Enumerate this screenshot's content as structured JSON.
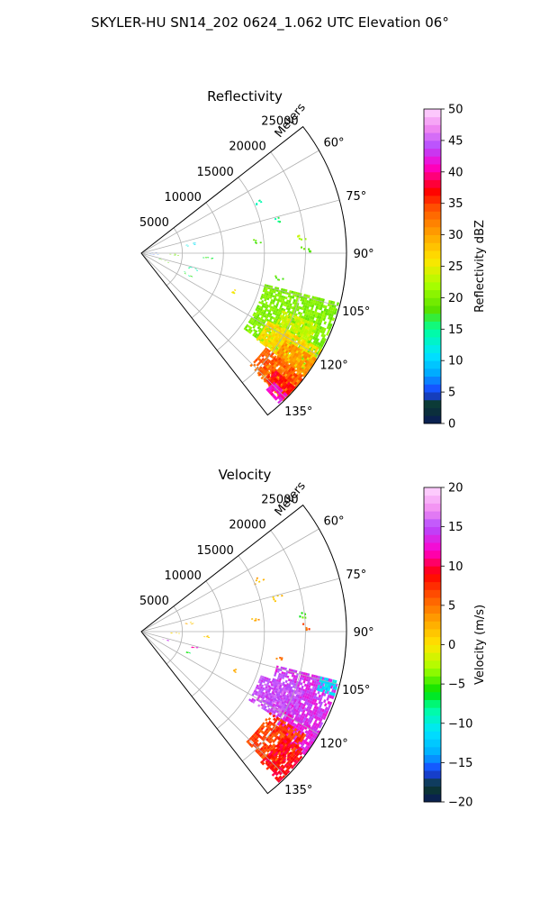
{
  "suptitle": "SKYLER-HU  SN14_202  0624_1.062 UTC Elevation 06°",
  "chart_data": [
    {
      "type": "heatmap",
      "projection": "polar-sector",
      "title": "Reflectivity",
      "radial_label": "Meters",
      "radial_ticks": [
        5000,
        10000,
        15000,
        20000,
        25000
      ],
      "radial_tick_labels": [
        "5000",
        "10000",
        "15000",
        "20000",
        "25000"
      ],
      "rlim": [
        0,
        25000
      ],
      "angle_range_deg": [
        52,
        142
      ],
      "angle_ticks": [
        60,
        75,
        90,
        105,
        120,
        135
      ],
      "angle_tick_labels": [
        "60°",
        "75°",
        "90°",
        "105°",
        "120°",
        "135°"
      ],
      "grid": true,
      "colorbar": {
        "label": "Reflectivity dBZ",
        "vmin": 0,
        "vmax": 50,
        "ticks": [
          0,
          5,
          10,
          15,
          20,
          25,
          30,
          35,
          40,
          45,
          50
        ],
        "tick_labels": [
          "0",
          "5",
          "10",
          "15",
          "20",
          "25",
          "30",
          "35",
          "40",
          "45",
          "50"
        ],
        "stops": [
          [
            0,
            "#0a1a5a"
          ],
          [
            3,
            "#0b3b2a"
          ],
          [
            5,
            "#1a3fff"
          ],
          [
            8,
            "#00aaff"
          ],
          [
            11,
            "#00e5ff"
          ],
          [
            15,
            "#00ff9a"
          ],
          [
            18,
            "#55e000"
          ],
          [
            22,
            "#a8ff00"
          ],
          [
            26,
            "#ffe600"
          ],
          [
            30,
            "#ffa500"
          ],
          [
            34,
            "#ff5a00"
          ],
          [
            37,
            "#ff0000"
          ],
          [
            41,
            "#ff00cc"
          ],
          [
            44,
            "#b44cff"
          ],
          [
            47,
            "#f088f0"
          ],
          [
            50,
            "#ffd8ff"
          ]
        ]
      },
      "echo_regions": [
        {
          "az": [
            104,
            126
          ],
          "r": [
            15500,
            24800
          ],
          "value": 20
        },
        {
          "az": [
            112,
            126
          ],
          "r": [
            18500,
            23000
          ],
          "value": 24
        },
        {
          "az": [
            118,
            127
          ],
          "r": [
            17500,
            24800
          ],
          "value": 27
        },
        {
          "az": [
            121,
            136
          ],
          "r": [
            20500,
            24800
          ],
          "value": 31
        },
        {
          "az": [
            127,
            136
          ],
          "r": [
            19000,
            24800
          ],
          "value": 34
        },
        {
          "az": [
            131,
            135
          ],
          "r": [
            21500,
            24800
          ],
          "value": 37
        },
        {
          "az": [
            134,
            137
          ],
          "r": [
            22500,
            24800
          ],
          "value": 41
        }
      ],
      "echo_clutter": [
        {
          "az": 84,
          "r": 14000,
          "value": 18
        },
        {
          "az": 76,
          "r": 17000,
          "value": 15
        },
        {
          "az": 66,
          "r": 15500,
          "value": 14
        },
        {
          "az": 88,
          "r": 20000,
          "value": 18
        },
        {
          "az": 100,
          "r": 17000,
          "value": 18
        },
        {
          "az": 94,
          "r": 8000,
          "value": 17
        },
        {
          "az": 106,
          "r": 6500,
          "value": 14
        },
        {
          "az": 114,
          "r": 6200,
          "value": 16
        },
        {
          "az": 92,
          "r": 4000,
          "value": 20
        },
        {
          "az": 95,
          "r": 1500,
          "value": 6
        },
        {
          "az": 88,
          "r": 1200,
          "value": 5
        },
        {
          "az": 80,
          "r": 6000,
          "value": 11
        },
        {
          "az": 108,
          "r": 2800,
          "value": 18
        },
        {
          "az": 112,
          "r": 12500,
          "value": 26
        },
        {
          "az": 84,
          "r": 19500,
          "value": 23
        }
      ]
    },
    {
      "type": "heatmap",
      "projection": "polar-sector",
      "title": "Velocity",
      "radial_label": "Meters",
      "radial_ticks": [
        5000,
        10000,
        15000,
        20000,
        25000
      ],
      "radial_tick_labels": [
        "5000",
        "10000",
        "15000",
        "20000",
        "25000"
      ],
      "rlim": [
        0,
        25000
      ],
      "angle_range_deg": [
        52,
        142
      ],
      "angle_ticks": [
        60,
        75,
        90,
        105,
        120,
        135
      ],
      "angle_tick_labels": [
        "60°",
        "75°",
        "90°",
        "105°",
        "120°",
        "135°"
      ],
      "grid": true,
      "colorbar": {
        "label": "Velocity (m/s)",
        "vmin": -20,
        "vmax": 20,
        "ticks": [
          -20,
          -15,
          -10,
          -5,
          0,
          5,
          10,
          15,
          20
        ],
        "tick_labels": [
          "−20",
          "−15",
          "−10",
          "−5",
          "0",
          "5",
          "10",
          "15",
          "20"
        ],
        "stops": [
          [
            -20,
            "#0a1a5a"
          ],
          [
            -18,
            "#0b3b2a"
          ],
          [
            -16,
            "#1a3fff"
          ],
          [
            -14,
            "#00aaff"
          ],
          [
            -11,
            "#00e5ff"
          ],
          [
            -8,
            "#00ff9a"
          ],
          [
            -6,
            "#00e000"
          ],
          [
            -3,
            "#a8ff00"
          ],
          [
            0,
            "#ffe600"
          ],
          [
            3,
            "#ffa500"
          ],
          [
            6,
            "#ff5a00"
          ],
          [
            9,
            "#ff0000"
          ],
          [
            12,
            "#ff00cc"
          ],
          [
            15,
            "#b44cff"
          ],
          [
            17,
            "#f088f0"
          ],
          [
            20,
            "#ffd8ff"
          ]
        ]
      },
      "echo_regions": [
        {
          "az": [
            104,
            120
          ],
          "r": [
            17000,
            24800
          ],
          "value": 14
        },
        {
          "az": [
            110,
            122
          ],
          "r": [
            15500,
            21000
          ],
          "value": 15
        },
        {
          "az": [
            119,
            128
          ],
          "r": [
            20000,
            24800
          ],
          "value": 13
        },
        {
          "az": [
            122,
            136
          ],
          "r": [
            18500,
            23500
          ],
          "value": 7
        },
        {
          "az": [
            126,
            137
          ],
          "r": [
            21500,
            24800
          ],
          "value": 9
        },
        {
          "az": [
            104,
            108
          ],
          "r": [
            22500,
            24800
          ],
          "value": -11
        }
      ],
      "echo_clutter": [
        {
          "az": 84,
          "r": 14000,
          "value": 3
        },
        {
          "az": 76,
          "r": 17000,
          "value": 2
        },
        {
          "az": 66,
          "r": 15500,
          "value": 2
        },
        {
          "az": 88,
          "r": 20000,
          "value": 6
        },
        {
          "az": 100,
          "r": 17000,
          "value": 5
        },
        {
          "az": 94,
          "r": 8000,
          "value": 1
        },
        {
          "az": 106,
          "r": 6500,
          "value": 12
        },
        {
          "az": 114,
          "r": 6200,
          "value": -6
        },
        {
          "az": 92,
          "r": 4000,
          "value": 0
        },
        {
          "az": 80,
          "r": 6000,
          "value": 2
        },
        {
          "az": 108,
          "r": 2800,
          "value": 14
        },
        {
          "az": 112,
          "r": 12500,
          "value": 3
        },
        {
          "az": 84,
          "r": 19500,
          "value": -5
        }
      ]
    }
  ]
}
